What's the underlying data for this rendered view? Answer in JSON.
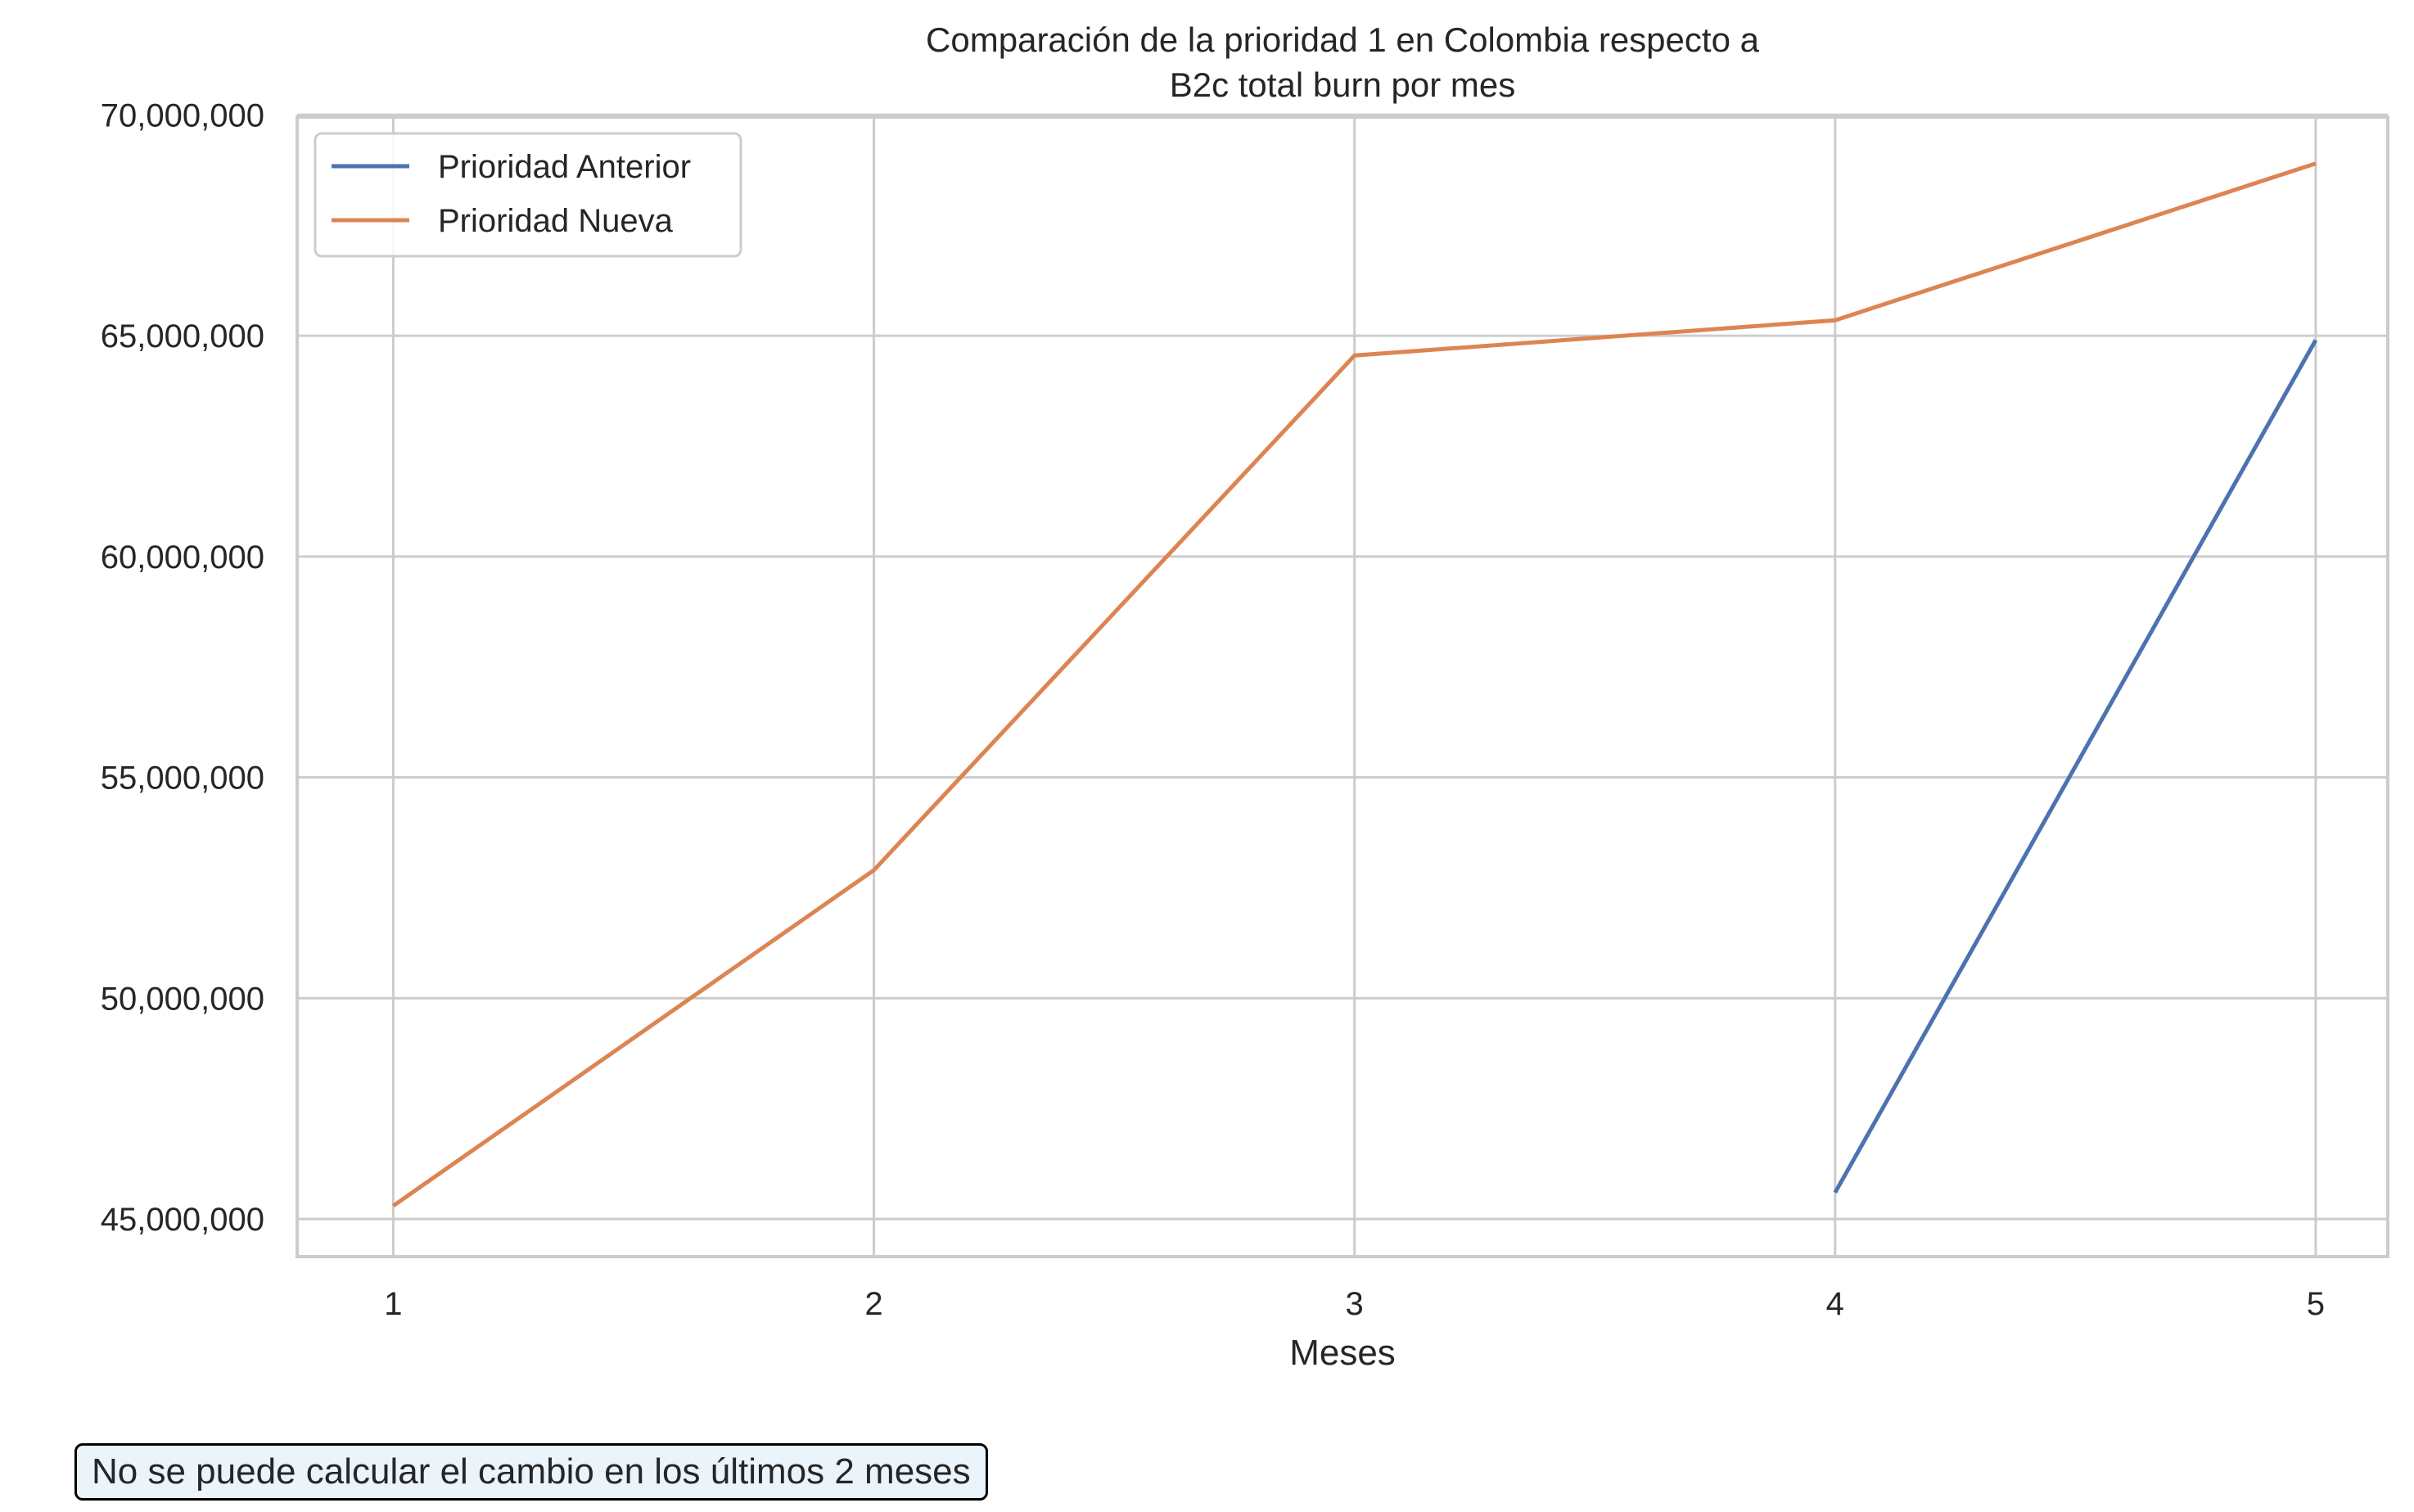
{
  "chart_data": {
    "type": "line",
    "title_lines": [
      "Comparación de la prioridad 1 en Colombia respecto a",
      "B2c total burn por mes"
    ],
    "xlabel": "Meses",
    "ylabel": "",
    "x": [
      1,
      2,
      3,
      4,
      5
    ],
    "xticks": [
      1,
      2,
      3,
      4,
      5
    ],
    "xtick_labels": [
      "1",
      "2",
      "3",
      "4",
      "5"
    ],
    "xlim": [
      0.8,
      5.15
    ],
    "yticks": [
      45000000,
      50000000,
      55000000,
      60000000,
      65000000,
      70000000
    ],
    "ytick_labels": [
      "45,000,000",
      "50,000,000",
      "55,000,000",
      "60,000,000",
      "65,000,000",
      "70,000,000"
    ],
    "ylim": [
      44150000,
      69950000
    ],
    "grid": true,
    "legend_position": "top-left",
    "series": [
      {
        "name": "Prioridad Anterior",
        "color": "#4c72b0",
        "x": [
          4,
          5
        ],
        "values": [
          45600000,
          64900000
        ]
      },
      {
        "name": "Prioridad Nueva",
        "color": "#dd8452",
        "x": [
          1,
          2,
          3,
          4,
          5
        ],
        "values": [
          45300000,
          52900000,
          64550000,
          65350000,
          68900000
        ]
      }
    ]
  },
  "note": {
    "text": "No se puede calcular el cambio en los últimos 2 meses"
  }
}
